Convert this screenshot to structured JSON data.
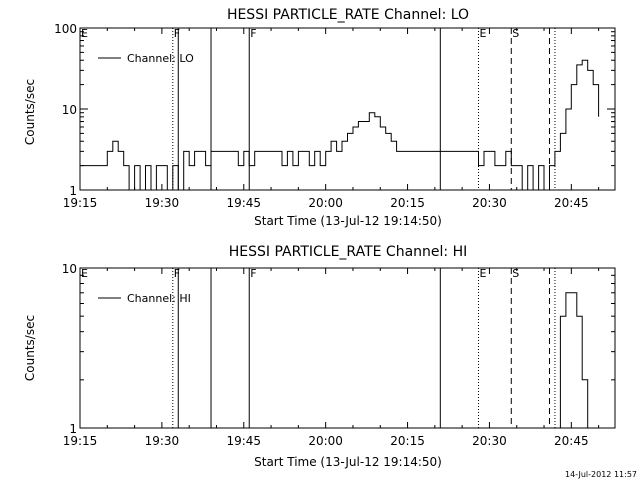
{
  "footer_timestamp": "14-Jul-2012 11:57",
  "colors": {
    "foreground": "#000000",
    "background": "#ffffff"
  },
  "chart_data": [
    {
      "type": "line",
      "title": "HESSI PARTICLE_RATE Channel: LO",
      "xlabel": "Start Time (13-Jul-12 19:14:50)",
      "ylabel": "Counts/sec",
      "yscale": "log",
      "xlim": [
        "19:15",
        "20:53"
      ],
      "ylim": [
        1,
        100
      ],
      "x_ticks": [
        "19:15",
        "19:30",
        "19:45",
        "20:00",
        "20:15",
        "20:30",
        "20:45"
      ],
      "y_ticks": [
        "1",
        "10",
        "100"
      ],
      "legend": {
        "position": "top-left",
        "entries": [
          "Channel: LO"
        ]
      },
      "series": [
        {
          "name": "Channel: LO",
          "x": [
            "19:15",
            "19:18",
            "19:19",
            "19:20",
            "19:21",
            "19:22",
            "19:23",
            "19:24",
            "19:25",
            "19:26",
            "19:27",
            "19:28",
            "19:29",
            "19:30",
            "19:31",
            "19:32",
            "19:33",
            "19:34",
            "19:35",
            "19:36",
            "19:37",
            "19:38",
            "19:39",
            "19:40",
            "19:41",
            "19:42",
            "19:43",
            "19:44",
            "19:45",
            "19:46",
            "19:47",
            "19:48",
            "19:49",
            "19:50",
            "19:51",
            "19:52",
            "19:53",
            "19:54",
            "19:55",
            "19:56",
            "19:57",
            "19:58",
            "19:59",
            "20:00",
            "20:01",
            "20:02",
            "20:03",
            "20:04",
            "20:05",
            "20:06",
            "20:07",
            "20:08",
            "20:09",
            "20:10",
            "20:11",
            "20:12",
            "20:13",
            "20:14",
            "20:15",
            "20:16",
            "20:17",
            "20:18",
            "20:19",
            "20:20",
            "20:21",
            "20:22",
            "20:23",
            "20:24",
            "20:25",
            "20:26",
            "20:27",
            "20:28",
            "20:29",
            "20:30",
            "20:31",
            "20:32",
            "20:33",
            "20:34",
            "20:35",
            "20:36",
            "20:37",
            "20:38",
            "20:39",
            "20:40",
            "20:41",
            "20:42",
            "20:43",
            "20:44",
            "20:45",
            "20:46",
            "20:47",
            "20:48",
            "20:49",
            "20:50"
          ],
          "y": [
            2,
            2,
            2,
            3,
            4,
            3,
            2,
            1,
            2,
            1,
            2,
            1,
            2,
            2,
            1,
            2,
            1,
            3,
            2,
            3,
            3,
            2,
            3,
            3,
            3,
            3,
            3,
            2,
            3,
            2,
            3,
            3,
            3,
            3,
            3,
            2,
            3,
            2,
            3,
            3,
            2,
            3,
            2,
            3,
            4,
            3,
            4,
            5,
            6,
            7,
            7,
            9,
            8,
            6,
            5,
            4,
            3,
            3,
            3,
            3,
            3,
            3,
            3,
            3,
            3,
            3,
            3,
            3,
            3,
            3,
            3,
            2,
            3,
            3,
            2,
            2,
            3,
            2,
            2,
            1,
            2,
            1,
            2,
            1,
            2,
            3,
            5,
            10,
            20,
            35,
            40,
            30,
            20,
            8
          ]
        }
      ],
      "markers": [
        {
          "time": "19:15",
          "label": "E",
          "line": "none"
        },
        {
          "time": "19:32",
          "label": "F",
          "line": "dotted"
        },
        {
          "time": "19:33",
          "label": "",
          "line": "solid"
        },
        {
          "time": "19:39",
          "label": "",
          "line": "solid"
        },
        {
          "time": "19:46",
          "label": "F",
          "line": "solid"
        },
        {
          "time": "20:21",
          "label": "",
          "line": "solid"
        },
        {
          "time": "20:28",
          "label": "E",
          "line": "dotted"
        },
        {
          "time": "20:34",
          "label": "S",
          "line": "dashed"
        },
        {
          "time": "20:41",
          "label": "",
          "line": "dashed"
        },
        {
          "time": "20:42",
          "label": "",
          "line": "dotted"
        }
      ]
    },
    {
      "type": "line",
      "title": "HESSI PARTICLE_RATE Channel: HI",
      "xlabel": "Start Time (13-Jul-12 19:14:50)",
      "ylabel": "Counts/sec",
      "yscale": "log",
      "xlim": [
        "19:15",
        "20:53"
      ],
      "ylim": [
        1,
        10
      ],
      "x_ticks": [
        "19:15",
        "19:30",
        "19:45",
        "20:00",
        "20:15",
        "20:30",
        "20:45"
      ],
      "y_ticks": [
        "1",
        "10"
      ],
      "legend": {
        "position": "top-left",
        "entries": [
          "Channel: HI"
        ]
      },
      "series": [
        {
          "name": "Channel: HI",
          "x": [
            "20:42",
            "20:43",
            "20:44",
            "20:45",
            "20:46",
            "20:47",
            "20:48"
          ],
          "y": [
            1,
            5,
            7,
            7,
            5,
            2,
            1
          ]
        }
      ],
      "markers": [
        {
          "time": "19:15",
          "label": "E",
          "line": "none"
        },
        {
          "time": "19:32",
          "label": "F",
          "line": "dotted"
        },
        {
          "time": "19:33",
          "label": "",
          "line": "solid"
        },
        {
          "time": "19:39",
          "label": "",
          "line": "solid"
        },
        {
          "time": "19:46",
          "label": "F",
          "line": "solid"
        },
        {
          "time": "20:21",
          "label": "",
          "line": "solid"
        },
        {
          "time": "20:28",
          "label": "E",
          "line": "dotted"
        },
        {
          "time": "20:34",
          "label": "S",
          "line": "dashed"
        },
        {
          "time": "20:41",
          "label": "",
          "line": "dashed"
        },
        {
          "time": "20:42",
          "label": "",
          "line": "dotted"
        }
      ]
    }
  ]
}
